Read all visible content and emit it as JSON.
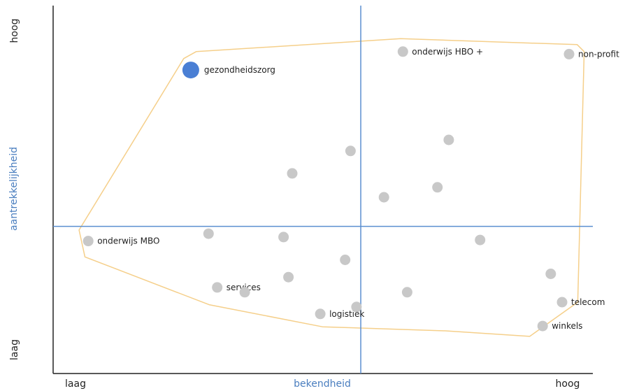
{
  "chart_data": {
    "type": "scatter",
    "title": "",
    "xlabel": "bekendheid",
    "ylabel": "aantrekkelijkheid",
    "x_low_label": "laag",
    "x_high_label": "hoog",
    "y_low_label": "laag",
    "y_high_label": "hoog",
    "xlim": [
      0,
      100
    ],
    "ylim": [
      0,
      100
    ],
    "center": [
      57,
      40
    ],
    "grid": false,
    "colors": {
      "axis": "#222222",
      "crosshair": "#5b8fd0",
      "axis_title": "#4a7ebf",
      "point": "#c8c8c8",
      "highlight": "#4a7fd4",
      "hull": "#f5cf8a"
    },
    "points": [
      {
        "x": 25.5,
        "y": 82.5,
        "label": "gezondheidszorg",
        "highlight": true
      },
      {
        "x": 64.8,
        "y": 87.5,
        "label": "onderwijs HBO +"
      },
      {
        "x": 95.6,
        "y": 86.8,
        "label": "non-profit"
      },
      {
        "x": 73.3,
        "y": 63.5
      },
      {
        "x": 55.1,
        "y": 60.5
      },
      {
        "x": 44.3,
        "y": 54.4
      },
      {
        "x": 61.3,
        "y": 47.9
      },
      {
        "x": 71.2,
        "y": 50.6
      },
      {
        "x": 6.5,
        "y": 36.0,
        "label": "onderwijs MBO"
      },
      {
        "x": 28.8,
        "y": 38.0
      },
      {
        "x": 42.7,
        "y": 37.1
      },
      {
        "x": 54.1,
        "y": 30.9
      },
      {
        "x": 79.1,
        "y": 36.3
      },
      {
        "x": 43.6,
        "y": 26.2
      },
      {
        "x": 30.4,
        "y": 23.4,
        "label": "services"
      },
      {
        "x": 35.5,
        "y": 22.1
      },
      {
        "x": 65.6,
        "y": 22.1
      },
      {
        "x": 49.5,
        "y": 16.2,
        "label": "logistiek"
      },
      {
        "x": 56.2,
        "y": 18.1
      },
      {
        "x": 92.2,
        "y": 27.1
      },
      {
        "x": 94.3,
        "y": 19.4,
        "label": "telecom"
      },
      {
        "x": 90.7,
        "y": 12.9,
        "label": "winkels"
      }
    ],
    "hull": [
      [
        4.8,
        39.0
      ],
      [
        5.9,
        31.7
      ],
      [
        28.9,
        18.7
      ],
      [
        49.9,
        12.7
      ],
      [
        72.7,
        11.6
      ],
      [
        88.3,
        10.1
      ],
      [
        97.2,
        19.4
      ],
      [
        98.4,
        87.5
      ],
      [
        97.1,
        89.4
      ],
      [
        64.4,
        91.0
      ],
      [
        26.5,
        87.5
      ],
      [
        24.2,
        85.6
      ]
    ]
  }
}
